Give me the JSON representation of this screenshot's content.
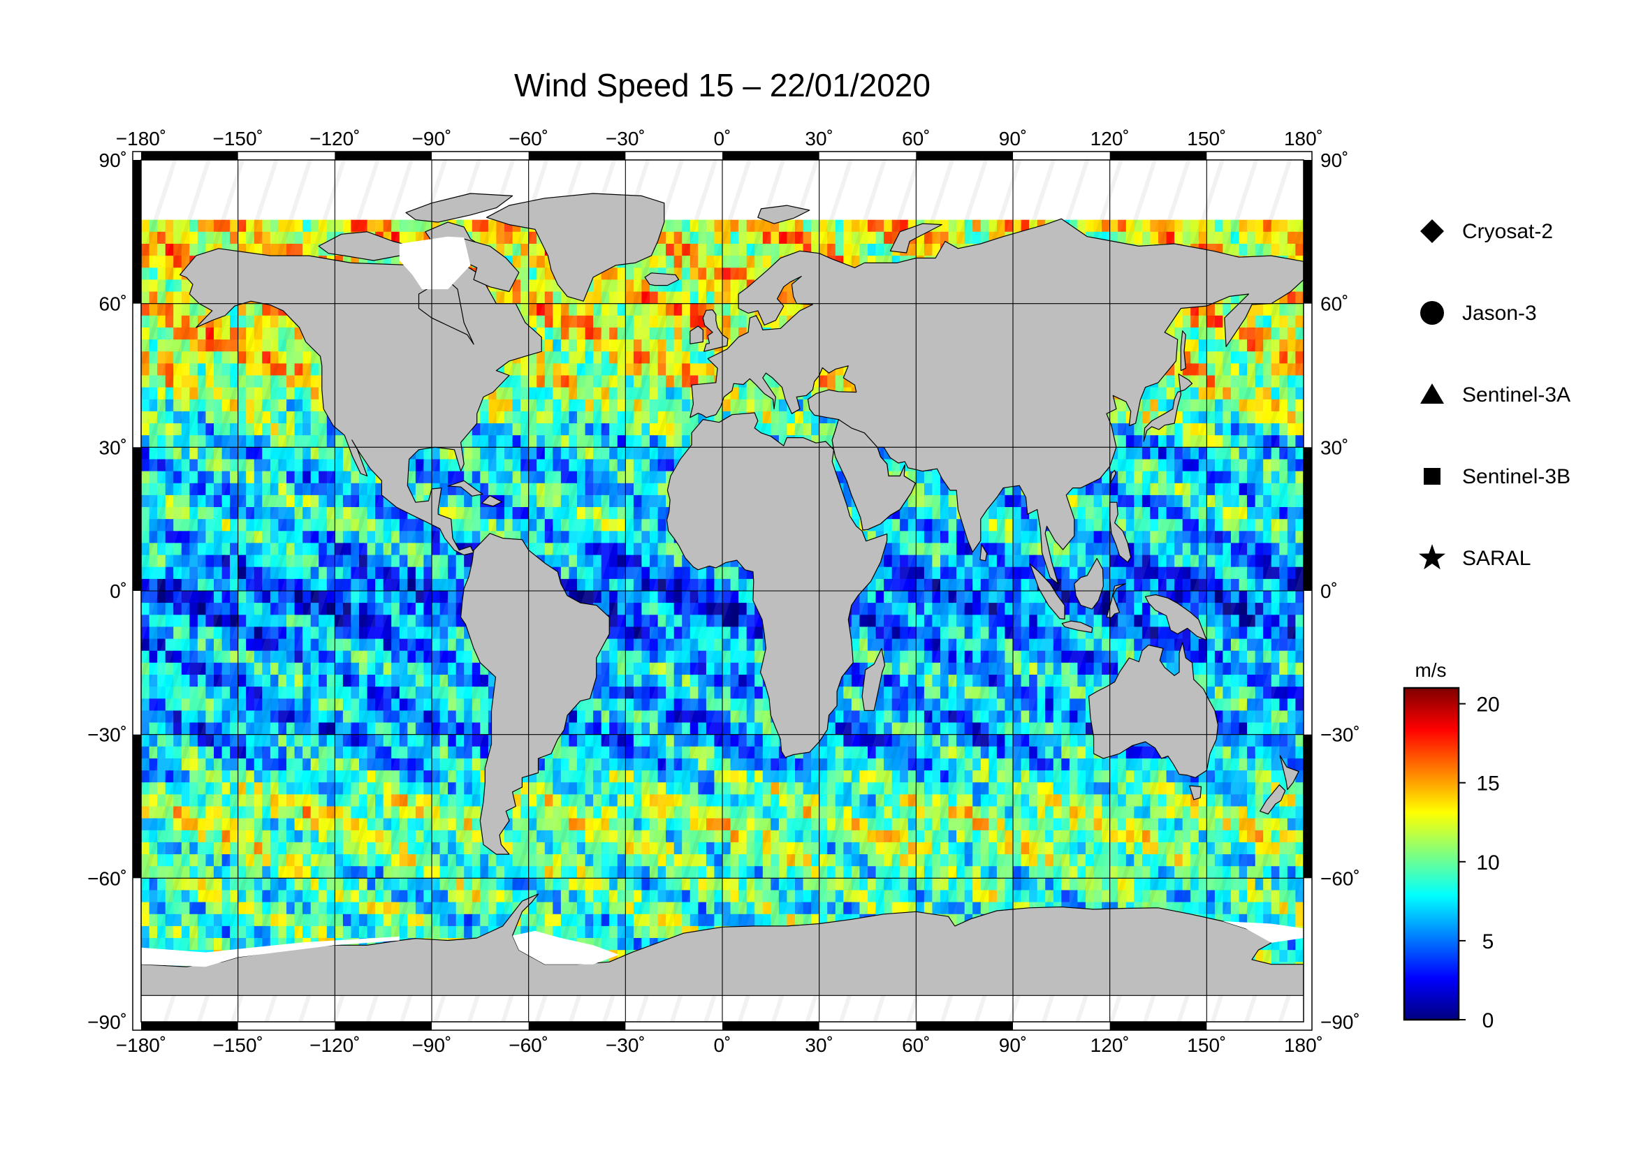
{
  "title": "Wind Speed 15 – 22/01/2020",
  "map": {
    "projection": "equirectangular",
    "lon_range": [
      -180,
      180
    ],
    "lat_range": [
      -90,
      90
    ],
    "lon_ticks": [
      "−180˚",
      "−150˚",
      "−120˚",
      "−90˚",
      "−60˚",
      "−30˚",
      "0˚",
      "30˚",
      "60˚",
      "90˚",
      "120˚",
      "150˚",
      "180˚"
    ],
    "lat_ticks_left": [
      "90˚",
      "60˚",
      "30˚",
      "0˚",
      "−30˚",
      "−60˚",
      "−90˚"
    ],
    "lat_ticks_right": [
      "90˚",
      "60˚",
      "30˚",
      "0˚",
      "−30˚",
      "−60˚",
      "−90˚"
    ],
    "grid": true,
    "land_color": "#bebebe",
    "ice_color": "#ffffff"
  },
  "legend": {
    "placement": "right",
    "items": [
      {
        "label": "Cryosat-2",
        "marker": "diamond"
      },
      {
        "label": "Jason-3",
        "marker": "circle"
      },
      {
        "label": "Sentinel-3A",
        "marker": "triangle"
      },
      {
        "label": "Sentinel-3B",
        "marker": "square"
      },
      {
        "label": "SARAL",
        "marker": "star"
      }
    ]
  },
  "colorbar": {
    "unit": "m/s",
    "min": 0,
    "max": 21,
    "ticks": [
      "20",
      "15",
      "10",
      "5",
      "0"
    ],
    "colormap": [
      "#00007f",
      "#0000ff",
      "#007fff",
      "#00ffff",
      "#7fff7f",
      "#ffff00",
      "#ff7f00",
      "#ff0000",
      "#7f0000"
    ]
  },
  "chart_data": {
    "type": "heatmap",
    "title": "Wind Speed 15 – 22/01/2020",
    "variable": "wind speed",
    "unit": "m/s",
    "value_range": [
      0,
      21
    ],
    "approx_zonal_means_by_lat": [
      {
        "lat": 60,
        "ocean_wind_ms": 13
      },
      {
        "lat": 45,
        "ocean_wind_ms": 12
      },
      {
        "lat": 30,
        "ocean_wind_ms": 7
      },
      {
        "lat": 15,
        "ocean_wind_ms": 8
      },
      {
        "lat": 0,
        "ocean_wind_ms": 4
      },
      {
        "lat": -15,
        "ocean_wind_ms": 7
      },
      {
        "lat": -30,
        "ocean_wind_ms": 6
      },
      {
        "lat": -45,
        "ocean_wind_ms": 11
      },
      {
        "lat": -60,
        "ocean_wind_ms": 9
      }
    ]
  }
}
